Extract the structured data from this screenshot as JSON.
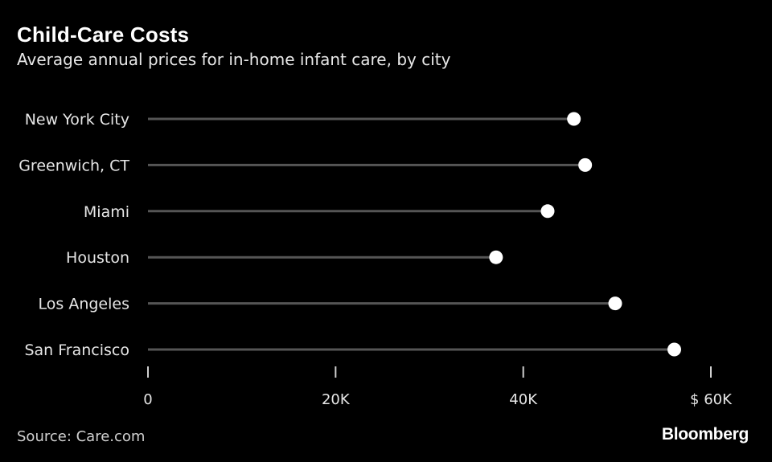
{
  "header": {
    "title": "Child-Care Costs",
    "subtitle": "Average annual prices for in-home infant care, by city"
  },
  "footer": {
    "source": "Source: Care.com",
    "brand": "Bloomberg"
  },
  "colors": {
    "background": "#000000",
    "stem": "#555555",
    "dot": "#ffffff",
    "text": "#ffffff"
  },
  "chart_data": {
    "type": "lollipop",
    "title": "Child-Care Costs",
    "subtitle": "Average annual prices for in-home infant care, by city",
    "categories": [
      "New York City",
      "Greenwich, CT",
      "Miami",
      "Houston",
      "Los Angeles",
      "San Francisco"
    ],
    "values": [
      45400,
      46600,
      42600,
      37100,
      49800,
      56100
    ],
    "xlim": [
      0,
      60000
    ],
    "xticks": [
      0,
      20000,
      40000,
      60000
    ],
    "xtick_labels": [
      "0",
      "20K",
      "40K",
      "$ 60K"
    ],
    "grid": false,
    "legend": "none"
  }
}
